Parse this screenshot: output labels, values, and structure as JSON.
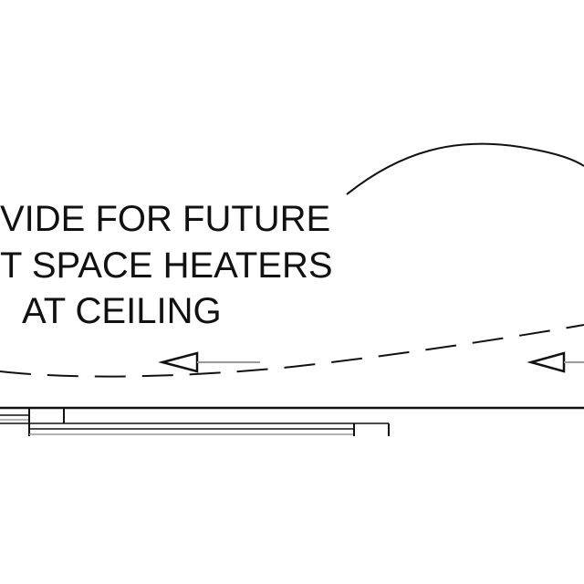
{
  "annotation": {
    "lines": [
      "VIDE FOR FUTURE",
      "T SPACE HEATERS",
      "AT CEILING"
    ]
  },
  "colors": {
    "ink": "#111111",
    "light_line": "#9a9a9a",
    "background": "#ffffff"
  }
}
